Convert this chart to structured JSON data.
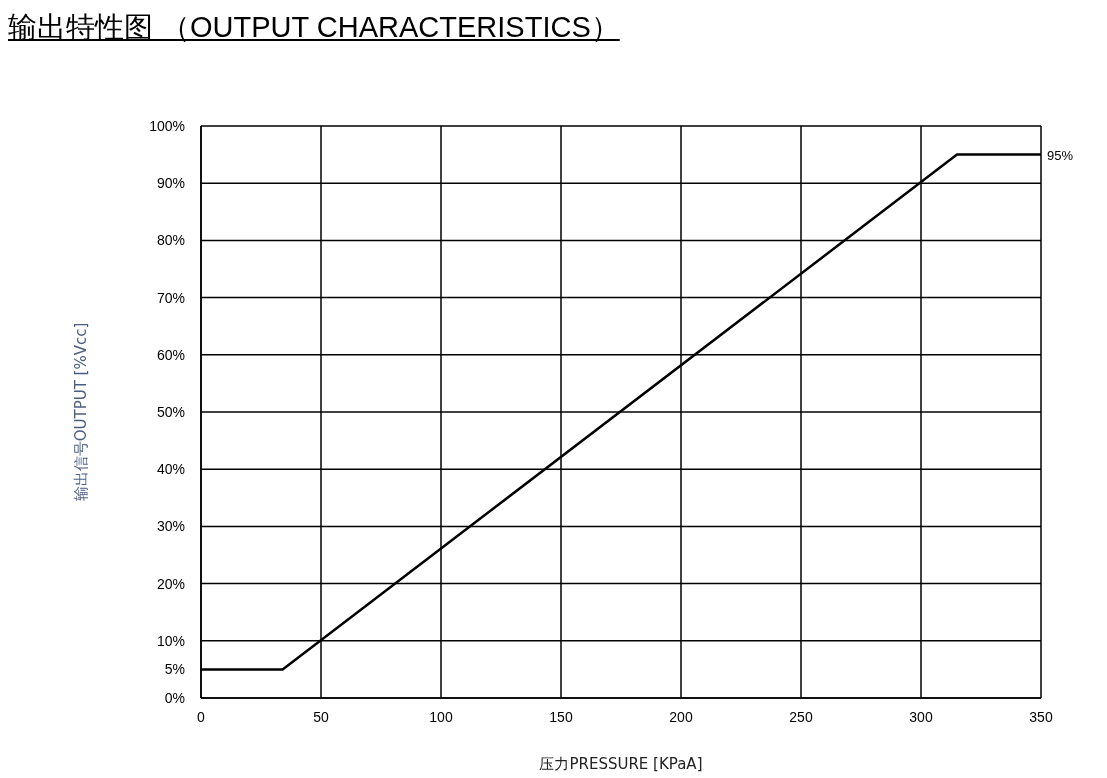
{
  "chart_data": {
    "type": "line",
    "title": "输出特性图 （OUTPUT CHARACTERISTICS）",
    "xlabel": "压力PRESSURE  [KPaA]",
    "ylabel": "输出信号OUTPUT  [%Vcc]",
    "series": [
      {
        "color": "#000000",
        "x": [
          0,
          34,
          315,
          350
        ],
        "values": [
          5,
          5,
          95,
          95
        ]
      }
    ],
    "xlim": [
      0,
      350
    ],
    "xticks": [
      0,
      50,
      100,
      150,
      200,
      250,
      300,
      350
    ],
    "ylim": [
      0,
      100
    ],
    "yticks": [
      {
        "value": 0,
        "label": "0%"
      },
      {
        "value": 5,
        "label": "5%"
      },
      {
        "value": 10,
        "label": "10%"
      },
      {
        "value": 20,
        "label": "20%"
      },
      {
        "value": 30,
        "label": "30%"
      },
      {
        "value": 40,
        "label": "40%"
      },
      {
        "value": 50,
        "label": "50%"
      },
      {
        "value": 60,
        "label": "60%"
      },
      {
        "value": 70,
        "label": "70%"
      },
      {
        "value": 80,
        "label": "80%"
      },
      {
        "value": 90,
        "label": "90%"
      },
      {
        "value": 100,
        "label": "100%"
      }
    ],
    "annotations": [
      {
        "text": "95%",
        "x": 350,
        "y": 95
      }
    ],
    "grid": true,
    "legend": false,
    "marker": "none",
    "line_style": "solid"
  }
}
